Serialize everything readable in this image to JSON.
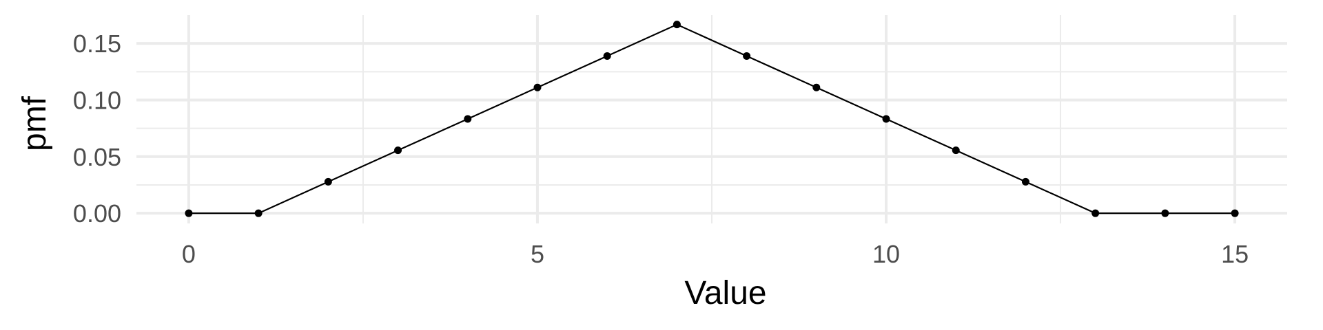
{
  "chart_data": {
    "type": "line",
    "title": "",
    "xlabel": "Value",
    "ylabel": "pmf",
    "xlim": [
      -0.75,
      15.75
    ],
    "ylim": [
      -0.009,
      0.175
    ],
    "xticks": [
      0,
      5,
      10,
      15
    ],
    "xtick_labels": [
      "0",
      "5",
      "10",
      "15"
    ],
    "yticks": [
      0,
      0.05,
      0.1,
      0.15
    ],
    "ytick_labels": [
      "0.00",
      "0.05",
      "0.10",
      "0.15"
    ],
    "x_minor": [
      2.5,
      7.5,
      12.5
    ],
    "y_minor": [
      0.025,
      0.075,
      0.125
    ],
    "grid": true,
    "series": [
      {
        "x": [
          0,
          1,
          2,
          3,
          4,
          5,
          6,
          7,
          8,
          9,
          10,
          11,
          12,
          13,
          14,
          15
        ],
        "y": [
          0,
          0,
          0.0278,
          0.0556,
          0.0833,
          0.1111,
          0.1389,
          0.1667,
          0.1389,
          0.1111,
          0.0833,
          0.0556,
          0.0278,
          0,
          0,
          0
        ]
      }
    ],
    "colors": {
      "line": "#000000",
      "grid": "#ebebeb",
      "tick_text": "#4d4d4d"
    }
  }
}
